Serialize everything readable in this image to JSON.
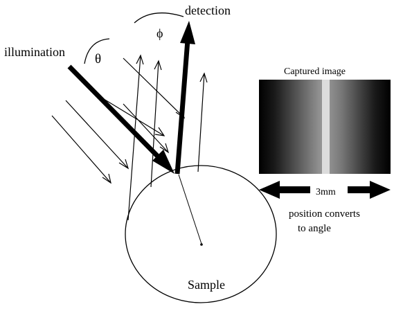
{
  "labels": {
    "illumination": "illumination",
    "detection": "detection",
    "theta": "θ",
    "phi": "ϕ",
    "sample": "Sample",
    "captured_image": "Captured image",
    "scale": "3mm",
    "note_line1": "position converts",
    "note_line2": "to angle"
  },
  "colors": {
    "ink": "#000000",
    "background": "#ffffff",
    "image_center": "#9a9a9a",
    "image_edge": "#000000",
    "image_stripe": "#dcdcdc"
  }
}
